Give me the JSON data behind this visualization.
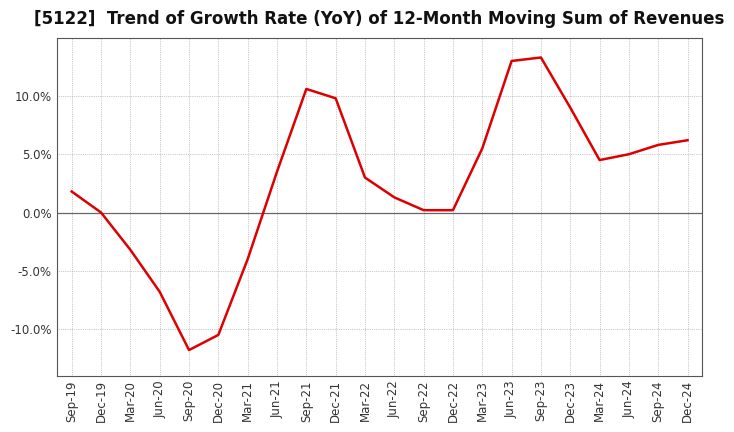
{
  "title": "[5122]  Trend of Growth Rate (YoY) of 12-Month Moving Sum of Revenues",
  "x_labels": [
    "Sep-19",
    "Dec-19",
    "Mar-20",
    "Jun-20",
    "Sep-20",
    "Dec-20",
    "Mar-21",
    "Jun-21",
    "Sep-21",
    "Dec-21",
    "Mar-22",
    "Jun-22",
    "Sep-22",
    "Dec-22",
    "Mar-23",
    "Jun-23",
    "Sep-23",
    "Dec-23",
    "Mar-24",
    "Jun-24",
    "Sep-24",
    "Dec-24"
  ],
  "y_values": [
    1.8,
    0.0,
    -3.2,
    -6.8,
    -11.8,
    -10.5,
    -4.0,
    3.5,
    10.6,
    9.8,
    3.0,
    1.3,
    0.2,
    0.2,
    5.5,
    13.0,
    13.3,
    9.0,
    4.5,
    5.0,
    5.8,
    6.2
  ],
  "line_color": "#dd0000",
  "line_width": 1.8,
  "bg_color": "#ffffff",
  "plot_bg_color": "#ffffff",
  "grid_color": "#999999",
  "ylim": [
    -14,
    15
  ],
  "yticks": [
    -10,
    -5,
    0,
    5,
    10
  ],
  "ytick_labels": [
    "-10.0%",
    "-5.0%",
    "0.0%",
    "5.0%",
    "10.0%"
  ],
  "title_fontsize": 12,
  "tick_fontsize": 8.5,
  "zero_line_color": "#666666",
  "spine_color": "#555555"
}
